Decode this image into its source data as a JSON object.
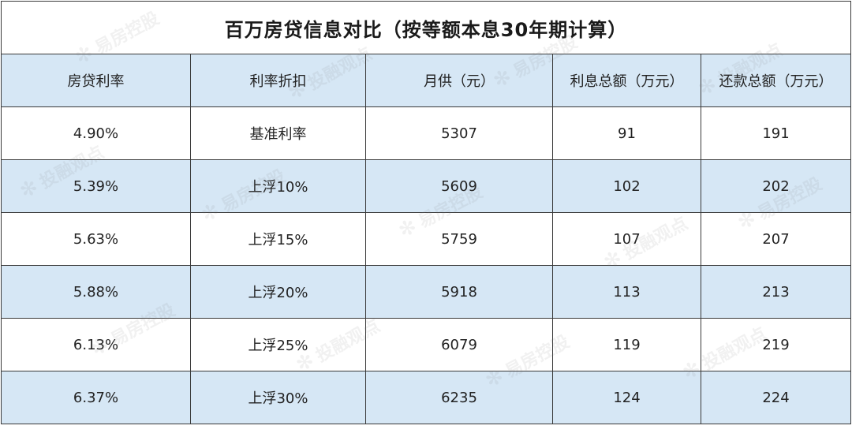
{
  "title": "百万房贷信息对比（按等额本息30年期计算）",
  "columns": [
    "房贷利率",
    "利率折扣",
    "月供（元）",
    "利息总额（万元）",
    "还款总额（万元）"
  ],
  "rows": [
    [
      "4.90%",
      "基准利率",
      "5307",
      "91",
      "191"
    ],
    [
      "5.39%",
      "上浮10%",
      "5609",
      "102",
      "202"
    ],
    [
      "5.63%",
      "上浮15%",
      "5759",
      "107",
      "207"
    ],
    [
      "5.88%",
      "上浮20%",
      "5918",
      "113",
      "213"
    ],
    [
      "6.13%",
      "上浮25%",
      "6079",
      "119",
      "219"
    ],
    [
      "6.37%",
      "上浮30%",
      "6235",
      "124",
      "224"
    ]
  ],
  "colors": {
    "header_bg": "#d6e7f5",
    "alt_row_bg": "#d6e7f5",
    "border": "#3a3a3a"
  },
  "watermark": {
    "text_a": "易房控股",
    "text_b": "投融观点",
    "icon": "flower-logo-icon"
  }
}
